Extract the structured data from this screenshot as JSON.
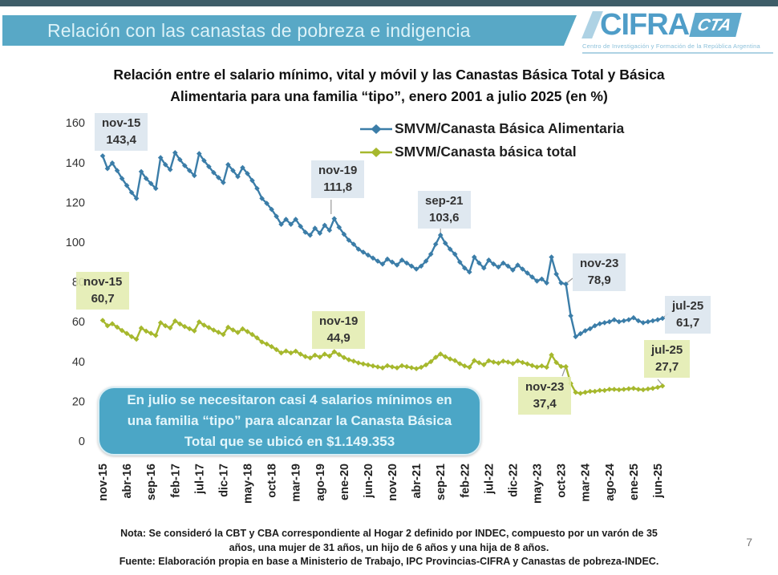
{
  "banner": {
    "title": "Relación con las canastas de pobreza e indigencia"
  },
  "logo": {
    "name": "CIFRA",
    "badge": "CTA",
    "caption": "Centro de Investigación y Formación de la República Argentina"
  },
  "chart_header": {
    "line1": "Relación entre el salario mínimo, vital y móvil y las Canastas Básica Total y Básica",
    "line2": "Alimentaria para una familia “tipo”, enero 2001 a julio 2025 (en %)"
  },
  "chart_data": {
    "type": "line",
    "title": "Relación entre el salario mínimo, vital y móvil y las Canastas Básica Total y Básica Alimentaria para una familia “tipo”, enero 2001 a julio 2025 (en %)",
    "frequency": "monthly",
    "x_start": "nov-15",
    "x_end": "jul-25",
    "x_tick_labels": [
      "nov-15",
      "abr-16",
      "sep-16",
      "feb-17",
      "jul-17",
      "dic-17",
      "may-18",
      "oct-18",
      "mar-19",
      "ago-19",
      "ene-20",
      "jun-20",
      "nov-20",
      "abr-21",
      "sep-21",
      "feb-22",
      "jul-22",
      "dic-22",
      "may-23",
      "oct-23",
      "mar-24",
      "ago-24",
      "ene-25",
      "jun-25"
    ],
    "x_tick_step_months": 5,
    "ylim": [
      0,
      160
    ],
    "y_ticks": [
      0,
      20,
      40,
      60,
      80,
      100,
      120,
      140,
      160
    ],
    "grid": false,
    "legend_position": "top-center",
    "marker": "diamond",
    "series": [
      {
        "name": "SMVM/Canasta Básica Alimentaria",
        "color": "#3b7da8",
        "values": [
          143.4,
          137.0,
          139.8,
          136.0,
          132.0,
          128.5,
          125.0,
          122.0,
          135.5,
          132.0,
          129.5,
          127.0,
          142.5,
          139.0,
          136.5,
          145.0,
          141.5,
          138.5,
          136.0,
          133.5,
          144.5,
          141.0,
          138.0,
          135.0,
          132.5,
          130.0,
          139.0,
          136.0,
          133.0,
          137.5,
          134.5,
          131.0,
          127.0,
          122.0,
          119.5,
          116.5,
          113.0,
          109.0,
          111.5,
          109.0,
          111.5,
          108.0,
          105.0,
          103.5,
          107.0,
          104.5,
          108.5,
          106.0,
          111.8,
          107.5,
          104.0,
          101.0,
          99.0,
          96.5,
          95.0,
          93.5,
          92.0,
          90.5,
          89.0,
          91.5,
          90.0,
          88.5,
          91.0,
          89.5,
          88.0,
          86.5,
          88.0,
          90.5,
          94.0,
          99.0,
          103.6,
          99.5,
          96.5,
          94.0,
          90.0,
          87.0,
          85.0,
          92.5,
          89.5,
          87.0,
          91.0,
          89.0,
          87.5,
          89.5,
          88.0,
          86.0,
          88.5,
          86.5,
          84.5,
          82.5,
          80.5,
          81.5,
          79.5,
          92.5,
          84.0,
          79.5,
          78.9,
          63.0,
          52.5,
          54.0,
          55.5,
          56.5,
          58.0,
          59.0,
          59.5,
          60.0,
          61.0,
          60.0,
          60.5,
          61.0,
          62.0,
          60.5,
          59.5,
          60.0,
          60.5,
          61.0,
          61.7
        ]
      },
      {
        "name": "SMVM/Canasta básica total",
        "color": "#a6b82d",
        "values": [
          60.7,
          58.0,
          59.0,
          57.3,
          55.6,
          54.1,
          52.5,
          51.2,
          56.8,
          55.3,
          54.2,
          53.1,
          59.5,
          58.0,
          56.9,
          60.4,
          58.9,
          57.6,
          56.5,
          55.4,
          59.9,
          58.3,
          57.1,
          55.8,
          54.7,
          53.6,
          57.2,
          55.9,
          54.6,
          56.4,
          55.1,
          53.6,
          51.9,
          49.8,
          48.8,
          47.5,
          46.0,
          44.3,
          45.3,
          44.3,
          45.2,
          43.7,
          42.5,
          41.8,
          43.2,
          42.2,
          43.7,
          42.7,
          44.9,
          43.5,
          42.0,
          40.9,
          40.2,
          39.3,
          38.8,
          38.3,
          37.8,
          37.3,
          36.8,
          37.9,
          37.3,
          36.8,
          37.9,
          37.4,
          36.9,
          36.4,
          37.1,
          38.3,
          39.9,
          42.1,
          43.8,
          42.4,
          41.3,
          40.5,
          38.9,
          37.8,
          37.1,
          40.5,
          39.4,
          38.4,
          40.4,
          39.7,
          39.2,
          40.2,
          39.7,
          39.0,
          40.3,
          39.5,
          38.8,
          38.0,
          37.2,
          37.8,
          37.1,
          43.3,
          39.5,
          37.5,
          37.4,
          29.0,
          24.5,
          24.0,
          24.5,
          25.0,
          25.0,
          25.5,
          25.5,
          26.0,
          26.0,
          25.8,
          26.0,
          26.3,
          26.5,
          26.0,
          25.8,
          26.2,
          26.5,
          27.0,
          27.7
        ]
      }
    ],
    "annotations": [
      {
        "series": "SMVM/Canasta Básica Alimentaria",
        "label": "nov-15",
        "value": "143,4"
      },
      {
        "series": "SMVM/Canasta Básica Alimentaria",
        "label": "nov-19",
        "value": "111,8"
      },
      {
        "series": "SMVM/Canasta Básica Alimentaria",
        "label": "sep-21",
        "value": "103,6"
      },
      {
        "series": "SMVM/Canasta Básica Alimentaria",
        "label": "nov-23",
        "value": "78,9"
      },
      {
        "series": "SMVM/Canasta Básica Alimentaria",
        "label": "jul-25",
        "value": "61,7"
      },
      {
        "series": "SMVM/Canasta básica total",
        "label": "nov-15",
        "value": "60,7"
      },
      {
        "series": "SMVM/Canasta básica total",
        "label": "nov-19",
        "value": "44,9"
      },
      {
        "series": "SMVM/Canasta básica total",
        "label": "nov-23",
        "value": "37,4"
      },
      {
        "series": "SMVM/Canasta básica total",
        "label": "jul-25",
        "value": "27,7"
      }
    ]
  },
  "callout": {
    "text": "En julio se necesitaron casi 4 salarios mínimos en una familia “tipo” para alcanzar la Canasta Básica Total que se ubicó en $1.149.353"
  },
  "notes": {
    "nota": "Nota: Se consideró la CBT y CBA correspondiente al Hogar 2 definido por INDEC, compuesto por un varón de 35 años, una mujer de 31 años, un hijo de 6 años y una hija de 8 años.",
    "fuente": "Fuente: Elaboración propia en base a Ministerio de Trabajo, IPC Provincias-CIFRA y Canastas de pobreza-INDEC."
  },
  "page_number": "7",
  "colors": {
    "banner": "#58a8c6",
    "callout_bg": "#4ba6c6",
    "series_cba": "#3b7da8",
    "series_cbt": "#a6b82d",
    "annotation_bg_cba": "#dbe5ee",
    "annotation_bg_cbt": "#e3ecaf"
  }
}
